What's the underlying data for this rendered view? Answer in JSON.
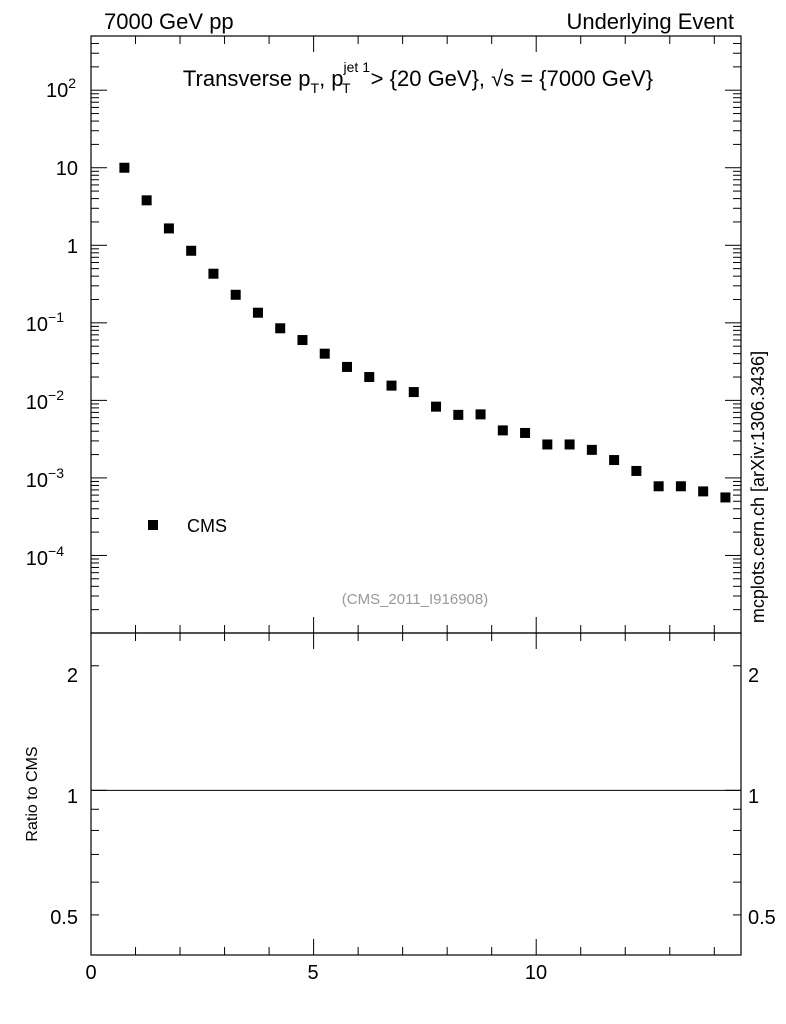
{
  "header": {
    "left": "7000 GeV pp",
    "right": "Underlying Event"
  },
  "plot_title": {
    "main": "Transverse p",
    "sub_t1": "T",
    "comma": ", p",
    "sup": "jet 1",
    "sub_t2": "T",
    "rest": " > {20 GeV}, √s = {7000 GeV}"
  },
  "watermark": "(CMS_2011_I916908)",
  "side_label": "mcplots.cern.ch [arXiv:1306.3436]",
  "ratio_ylabel": "Ratio to CMS",
  "legend": {
    "cms": "CMS"
  },
  "top_yticks": [
    {
      "base": "10",
      "exp": "2",
      "value": 100
    },
    {
      "base": "10",
      "exp": "",
      "value": 10
    },
    {
      "base": "1",
      "exp": "",
      "value": 1
    },
    {
      "base": "10",
      "exp": "−1",
      "value": 0.1
    },
    {
      "base": "10",
      "exp": "−2",
      "value": 0.01
    },
    {
      "base": "10",
      "exp": "−3",
      "value": 0.001
    },
    {
      "base": "10",
      "exp": "−4",
      "value": 0.0001
    }
  ],
  "ratio_yticks": [
    "2",
    "1",
    "0.5"
  ],
  "xticks": [
    "0",
    "5",
    "10"
  ],
  "chart_data": [
    {
      "type": "scatter",
      "y_scale": "log",
      "xlim": [
        0,
        14.6
      ],
      "ylim": [
        1e-05,
        500
      ],
      "series": [
        {
          "name": "CMS",
          "x": [
            0.75,
            1.25,
            1.75,
            2.25,
            2.75,
            3.25,
            3.75,
            4.25,
            4.75,
            5.25,
            5.75,
            6.25,
            6.75,
            7.25,
            7.75,
            8.25,
            8.75,
            9.25,
            9.75,
            10.25,
            10.75,
            11.25,
            11.75,
            12.25,
            12.75,
            13.25,
            13.75,
            14.25
          ],
          "y": [
            10,
            3.8,
            1.65,
            0.85,
            0.43,
            0.23,
            0.135,
            0.085,
            0.06,
            0.04,
            0.027,
            0.02,
            0.0155,
            0.0128,
            0.0083,
            0.0065,
            0.0066,
            0.0041,
            0.0038,
            0.0027,
            0.0027,
            0.0023,
            0.0017,
            0.00123,
            0.00078,
            0.00078,
            0.00067,
            0.00056
          ]
        }
      ],
      "grid": false,
      "legend_position": "lower-left"
    },
    {
      "type": "line",
      "y_scale": "log",
      "xlim": [
        0,
        14.6
      ],
      "ylim": [
        0.4,
        2.4
      ],
      "ylabel": "Ratio to CMS",
      "series": [
        {
          "x": [
            0,
            14.6
          ],
          "y": [
            1,
            1
          ]
        }
      ],
      "grid": false
    }
  ]
}
